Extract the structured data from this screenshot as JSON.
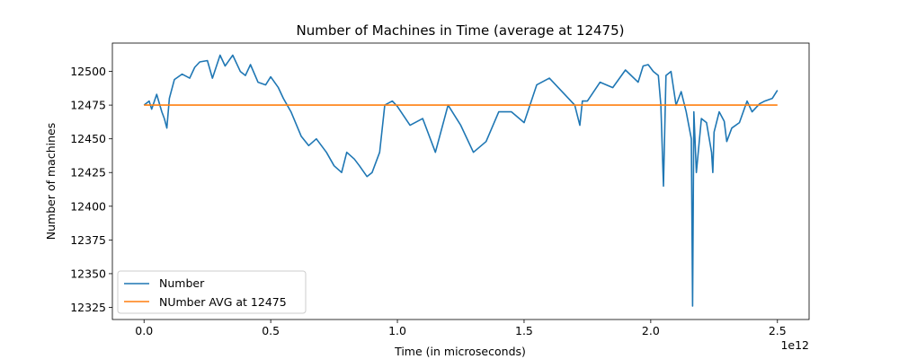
{
  "chart_data": {
    "type": "line",
    "title": "Number of Machines in Time (average at 12475)",
    "xlabel": "Time (in microseconds)",
    "ylabel": "Number of machines",
    "x_offset_label": "1e12",
    "xlim": [
      -0.125,
      2.625
    ],
    "ylim": [
      12316,
      12521
    ],
    "x_ticks": [
      0.0,
      0.5,
      1.0,
      1.5,
      2.0,
      2.5
    ],
    "x_tick_labels": [
      "0.0",
      "0.5",
      "1.0",
      "1.5",
      "2.0",
      "2.5"
    ],
    "y_ticks": [
      12325,
      12350,
      12375,
      12400,
      12425,
      12450,
      12475,
      12500
    ],
    "y_tick_labels": [
      "12325",
      "12350",
      "12375",
      "12400",
      "12425",
      "12450",
      "12475",
      "12500"
    ],
    "legend_position": "lower-left",
    "grid": false,
    "series": [
      {
        "name": "Number",
        "color": "#1f77b4",
        "x": [
          0.0,
          0.02,
          0.03,
          0.05,
          0.07,
          0.08,
          0.09,
          0.1,
          0.12,
          0.15,
          0.18,
          0.2,
          0.22,
          0.25,
          0.27,
          0.3,
          0.32,
          0.35,
          0.38,
          0.4,
          0.42,
          0.45,
          0.48,
          0.5,
          0.53,
          0.55,
          0.58,
          0.62,
          0.65,
          0.68,
          0.72,
          0.75,
          0.78,
          0.8,
          0.83,
          0.85,
          0.88,
          0.9,
          0.93,
          0.95,
          0.98,
          1.0,
          1.05,
          1.1,
          1.15,
          1.2,
          1.25,
          1.3,
          1.35,
          1.4,
          1.45,
          1.5,
          1.55,
          1.6,
          1.65,
          1.7,
          1.72,
          1.73,
          1.75,
          1.8,
          1.85,
          1.9,
          1.95,
          1.97,
          1.99,
          2.01,
          2.03,
          2.04,
          2.05,
          2.06,
          2.08,
          2.1,
          2.12,
          2.14,
          2.16,
          2.165,
          2.17,
          2.18,
          2.2,
          2.22,
          2.24,
          2.245,
          2.25,
          2.27,
          2.29,
          2.3,
          2.32,
          2.35,
          2.38,
          2.4,
          2.43,
          2.45,
          2.48,
          2.5
        ],
        "values": [
          12475,
          12478,
          12472,
          12483,
          12470,
          12465,
          12458,
          12480,
          12494,
          12498,
          12495,
          12503,
          12507,
          12508,
          12495,
          12512,
          12504,
          12512,
          12500,
          12497,
          12505,
          12492,
          12490,
          12496,
          12488,
          12480,
          12470,
          12452,
          12445,
          12450,
          12440,
          12430,
          12425,
          12440,
          12435,
          12430,
          12422,
          12425,
          12440,
          12475,
          12478,
          12474,
          12460,
          12465,
          12440,
          12475,
          12460,
          12440,
          12448,
          12470,
          12470,
          12462,
          12490,
          12495,
          12485,
          12475,
          12460,
          12478,
          12478,
          12492,
          12488,
          12501,
          12492,
          12504,
          12505,
          12500,
          12497,
          12475,
          12415,
          12497,
          12500,
          12475,
          12485,
          12470,
          12450,
          12326,
          12470,
          12425,
          12465,
          12462,
          12440,
          12425,
          12455,
          12470,
          12463,
          12448,
          12458,
          12462,
          12478,
          12470,
          12476,
          12478,
          12480,
          12486
        ]
      },
      {
        "name": "NUmber AVG at 12475",
        "color": "#ff7f0e",
        "x": [
          0.0,
          2.5
        ],
        "values": [
          12475,
          12475
        ]
      }
    ]
  }
}
